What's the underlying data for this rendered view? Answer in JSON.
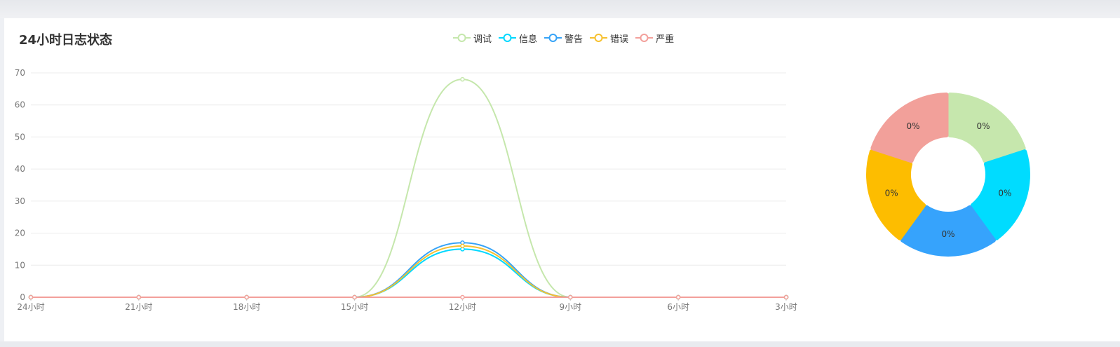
{
  "title": "24小时日志状态",
  "chart_data": [
    {
      "type": "line",
      "categories": [
        "24小时",
        "21小时",
        "18小时",
        "15小时",
        "12小时",
        "9小时",
        "6小时",
        "3小时"
      ],
      "ylim": [
        0,
        70
      ],
      "yticks": [
        0,
        10,
        20,
        30,
        40,
        50,
        60,
        70
      ],
      "grid": true,
      "legend_position": "top",
      "series": [
        {
          "name": "调试",
          "color": "#c5e7ac",
          "values": [
            0,
            0,
            0,
            0,
            68,
            0,
            0,
            0
          ]
        },
        {
          "name": "信息",
          "color": "#00d8ff",
          "values": [
            0,
            0,
            0,
            0,
            15,
            0,
            0,
            0
          ]
        },
        {
          "name": "警告",
          "color": "#36a3f7",
          "values": [
            0,
            0,
            0,
            0,
            17,
            0,
            0,
            0
          ]
        },
        {
          "name": "错误",
          "color": "#f7c12f",
          "values": [
            0,
            0,
            0,
            0,
            16,
            0,
            0,
            0
          ]
        },
        {
          "name": "严重",
          "color": "#f3a09b",
          "values": [
            0,
            0,
            0,
            0,
            0,
            0,
            0,
            0
          ]
        }
      ]
    },
    {
      "type": "pie",
      "slices": [
        {
          "label": "0%",
          "value": 1,
          "color": "#c6e7ad"
        },
        {
          "label": "0%",
          "value": 1,
          "color": "#00dcff"
        },
        {
          "label": "0%",
          "value": 1,
          "color": "#36a3fc"
        },
        {
          "label": "0%",
          "value": 1,
          "color": "#fdbd00"
        },
        {
          "label": "0%",
          "value": 1,
          "color": "#f2a09a"
        }
      ]
    }
  ]
}
